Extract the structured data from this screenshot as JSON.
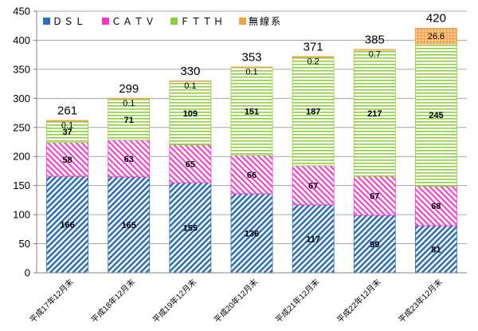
{
  "chart_data": {
    "type": "bar",
    "stacked": true,
    "categories": [
      "平成17年12月末",
      "平成18年12月末",
      "平成19年12月末",
      "平成20年12月末",
      "平成21年12月末",
      "平成22年12月末",
      "平成23年12月末"
    ],
    "series": [
      {
        "name": "ＤＳＬ",
        "values": [
          166,
          165,
          155,
          136,
          117,
          99,
          81
        ]
      },
      {
        "name": "ＣＡＴＶ",
        "values": [
          58,
          63,
          65,
          66,
          67,
          67,
          68
        ]
      },
      {
        "name": "ＦＴＴＨ",
        "values": [
          37,
          71,
          109,
          151,
          187,
          217,
          245
        ]
      },
      {
        "name": "無線系",
        "values": [
          0.1,
          0.1,
          0.1,
          0.1,
          0.2,
          0.7,
          26.6
        ]
      }
    ],
    "totals": [
      261,
      299,
      330,
      353,
      371,
      385,
      420
    ],
    "ylim": [
      0,
      450
    ],
    "yticks": [
      0,
      50,
      100,
      150,
      200,
      250,
      300,
      350,
      400,
      450
    ],
    "xlabel": "",
    "ylabel": "",
    "legend_position": "top-left",
    "colors": {
      "DSL": "#2e6fb5",
      "CATV": "#ff33cc",
      "FTTH": "#8fcf3c",
      "wireless": "#f7a046",
      "axis": "#808080"
    }
  }
}
